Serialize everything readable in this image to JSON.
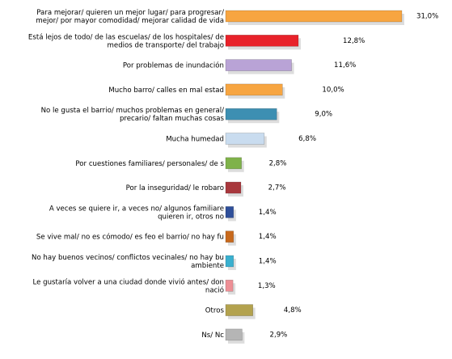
{
  "chart_data": {
    "type": "bar",
    "orientation": "horizontal",
    "categories": [
      [
        "Para mejorar/ quieren un mejor lugar/ para progresar/",
        "mejor/ por mayor comodidad/ mejorar calidad de vida"
      ],
      [
        "Está lejos de todo/ de las escuelas/ de los hospitales/ de",
        "medios de transporte/ del trabajo"
      ],
      [
        "Por problemas de inundación"
      ],
      [
        "Mucho barro/ calles en mal estad"
      ],
      [
        "No le gusta el barrio/ muchos problemas en general/",
        "precario/ faltan muchas cosas"
      ],
      [
        "Mucha humedad"
      ],
      [
        "Por cuestiones familiares/ personales/ de s"
      ],
      [
        "Por la inseguridad/ le robaro"
      ],
      [
        "A veces se quiere ir, a veces no/ algunos familiare",
        "quieren ir, otros no"
      ],
      [
        "Se vive mal/ no es cómodo/ es feo el barrio/ no hay fu"
      ],
      [
        "No hay buenos vecinos/ conflictos vecinales/ no hay bu",
        "ambiente"
      ],
      [
        "Le gustaría volver a una ciudad donde vivió antes/ don",
        "nació"
      ],
      [
        "Otros"
      ],
      [
        "Ns/ Nc"
      ]
    ],
    "values": [
      31.0,
      12.8,
      11.6,
      10.0,
      9.0,
      6.8,
      2.8,
      2.7,
      1.4,
      1.4,
      1.4,
      1.3,
      4.8,
      2.9
    ],
    "value_labels": [
      "31,0%",
      "12,8%",
      "11,6%",
      "10,0%",
      "9,0%",
      "6,8%",
      "2,8%",
      "2,7%",
      "1,4%",
      "1,4%",
      "1,4%",
      "1,3%",
      "4,8%",
      "2,9%"
    ],
    "colors": [
      "#f7a541",
      "#e8222a",
      "#b9a3d6",
      "#f7a541",
      "#3d8fb2",
      "#c9dcef",
      "#7fb24a",
      "#a8383d",
      "#2f4f9a",
      "#c8691c",
      "#3ab0cf",
      "#ee8f95",
      "#b3a24e",
      "#b5b5b5"
    ]
  }
}
